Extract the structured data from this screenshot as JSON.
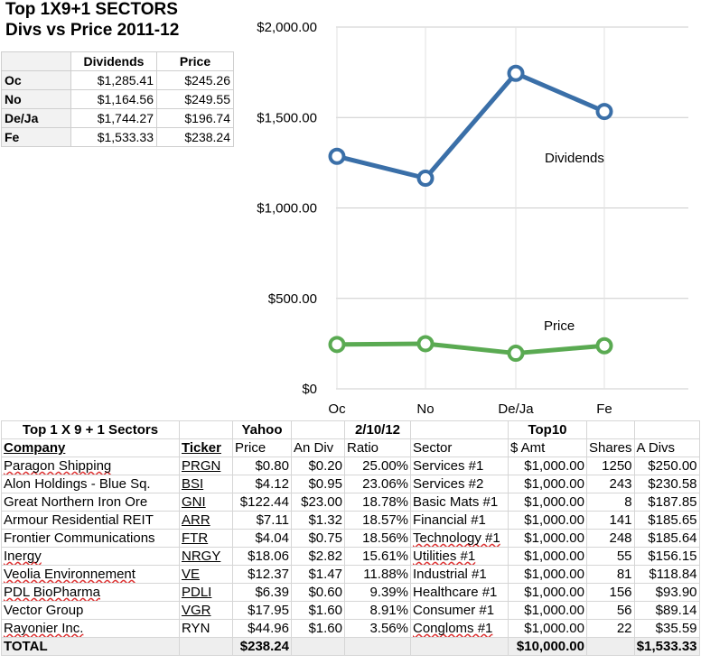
{
  "title_line1": "Top 1X9+1 SECTORS",
  "title_line2": "Divs vs Price 2011-12",
  "summary": {
    "headers": [
      "",
      "Dividends",
      "Price"
    ],
    "rows": [
      {
        "label": "Oc",
        "dividends": "$1,285.41",
        "price": "$245.26"
      },
      {
        "label": "No",
        "dividends": "$1,164.56",
        "price": "$249.55"
      },
      {
        "label": "De/Ja",
        "dividends": "$1,744.27",
        "price": "$196.74"
      },
      {
        "label": "Fe",
        "dividends": "$1,533.33",
        "price": "$238.24"
      }
    ]
  },
  "chart_data": {
    "type": "line",
    "categories": [
      "Oc",
      "No",
      "De/Ja",
      "Fe"
    ],
    "series": [
      {
        "name": "Dividends",
        "values": [
          1285.41,
          1164.56,
          1744.27,
          1533.33
        ],
        "color": "#3a6fa8"
      },
      {
        "name": "Price",
        "values": [
          245.26,
          249.55,
          196.74,
          238.24
        ],
        "color": "#5aaa52"
      }
    ],
    "ylim": [
      0,
      2000
    ],
    "y_ticks": [
      0,
      500,
      1000,
      1500,
      2000
    ],
    "y_tick_labels": [
      "$0",
      "$500.00",
      "$1,000.00",
      "$1,500.00",
      "$2,000.00"
    ],
    "grid": true,
    "title": "",
    "xlabel": "",
    "ylabel": ""
  },
  "table": {
    "header1": [
      "Top 1 X 9 + 1 Sectors",
      "",
      "Yahoo",
      "",
      "2/10/12",
      "",
      "Top10",
      "",
      ""
    ],
    "header2": [
      "Company",
      "Ticker",
      "Price",
      "An Div",
      "Ratio",
      "Sector",
      "$ Amt",
      "Shares",
      "A Divs"
    ],
    "rows": [
      [
        "Paragon Shipping",
        "PRGN",
        "$0.80",
        "$0.20",
        "25.00%",
        "Services #1",
        "$1,000.00",
        "1250",
        "$250.00"
      ],
      [
        "Alon Holdings - Blue Sq.",
        "BSI",
        "$4.12",
        "$0.95",
        "23.06%",
        "Services #2",
        "$1,000.00",
        "243",
        "$230.58"
      ],
      [
        "Great Northern Iron Ore",
        "GNI",
        "$122.44",
        "$23.00",
        "18.78%",
        "Basic Mats #1",
        "$1,000.00",
        "8",
        "$187.85"
      ],
      [
        "Armour Residential REIT",
        "ARR",
        "$7.11",
        "$1.32",
        "18.57%",
        "Financial #1",
        "$1,000.00",
        "141",
        "$185.65"
      ],
      [
        "Frontier Communications",
        "FTR",
        "$4.04",
        "$0.75",
        "18.56%",
        "Technology #1",
        "$1,000.00",
        "248",
        "$185.64"
      ],
      [
        "Inergy",
        "NRGY",
        "$18.06",
        "$2.82",
        "15.61%",
        "Utilities #1",
        "$1,000.00",
        "55",
        "$156.15"
      ],
      [
        "Veolia Environnement",
        "VE",
        "$12.37",
        "$1.47",
        "11.88%",
        "Industrial #1",
        "$1,000.00",
        "81",
        "$118.84"
      ],
      [
        "PDL BioPharma",
        "PDLI",
        "$6.39",
        "$0.60",
        "9.39%",
        "Healthcare #1",
        "$1,000.00",
        "156",
        "$93.90"
      ],
      [
        "Vector Group",
        "VGR",
        "$17.95",
        "$1.60",
        "8.91%",
        "Consumer #1",
        "$1,000.00",
        "56",
        "$89.14"
      ],
      [
        "Rayonier Inc.",
        "RYN",
        "$44.96",
        "$1.60",
        "3.56%",
        "Congloms #1",
        "$1,000.00",
        "22",
        "$35.59"
      ]
    ],
    "total": [
      "TOTAL",
      "",
      "$238.24",
      "",
      "",
      "",
      "$10,000.00",
      "",
      "$1,533.33"
    ]
  }
}
